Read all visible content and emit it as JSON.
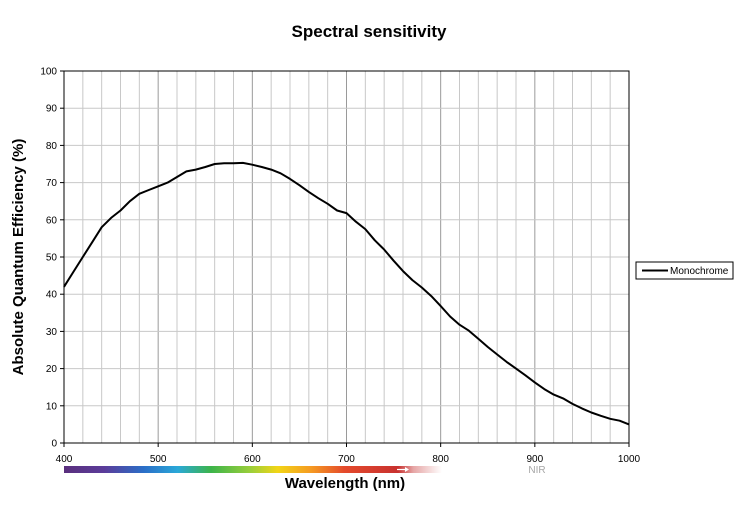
{
  "chart_data": {
    "type": "line",
    "title": "Spectral sensitivity",
    "xlabel": "Wavelength (nm)",
    "ylabel": "Absolute Quantum Efficiency (%)",
    "xlim": [
      400,
      1000
    ],
    "ylim": [
      0,
      100
    ],
    "x_ticks": [
      "400",
      "500",
      "600",
      "700",
      "800",
      "900",
      "1000"
    ],
    "y_ticks": [
      "0",
      "10",
      "20",
      "30",
      "40",
      "50",
      "60",
      "70",
      "80",
      "90",
      "100"
    ],
    "grid": true,
    "legend_position": "right",
    "spectrum_region_label": "NIR",
    "series": [
      {
        "name": "Monochrome",
        "color": "#000000",
        "x": [
          400,
          410,
          420,
          430,
          440,
          450,
          460,
          470,
          480,
          490,
          500,
          510,
          520,
          530,
          540,
          550,
          560,
          570,
          580,
          590,
          600,
          610,
          620,
          630,
          640,
          650,
          660,
          670,
          680,
          690,
          700,
          710,
          720,
          730,
          740,
          750,
          760,
          770,
          780,
          790,
          800,
          810,
          820,
          830,
          840,
          850,
          860,
          870,
          880,
          890,
          900,
          910,
          920,
          930,
          940,
          950,
          960,
          970,
          980,
          990,
          1000
        ],
        "values": [
          42,
          46,
          50,
          54,
          58,
          60.5,
          62.5,
          65,
          67,
          68,
          69,
          70,
          71.5,
          73,
          73.5,
          74.2,
          75,
          75.2,
          75.2,
          75.3,
          74.8,
          74.2,
          73.5,
          72.5,
          71,
          69.3,
          67.5,
          65.8,
          64.3,
          62.5,
          61.8,
          59.5,
          57.5,
          54.5,
          52,
          49,
          46.2,
          43.8,
          41.8,
          39.5,
          36.8,
          34,
          31.8,
          30.2,
          28,
          25.8,
          23.8,
          21.8,
          20,
          18.2,
          16.3,
          14.5,
          13,
          12,
          10.5,
          9.3,
          8.2,
          7.3,
          6.5,
          6,
          5
        ]
      }
    ]
  }
}
